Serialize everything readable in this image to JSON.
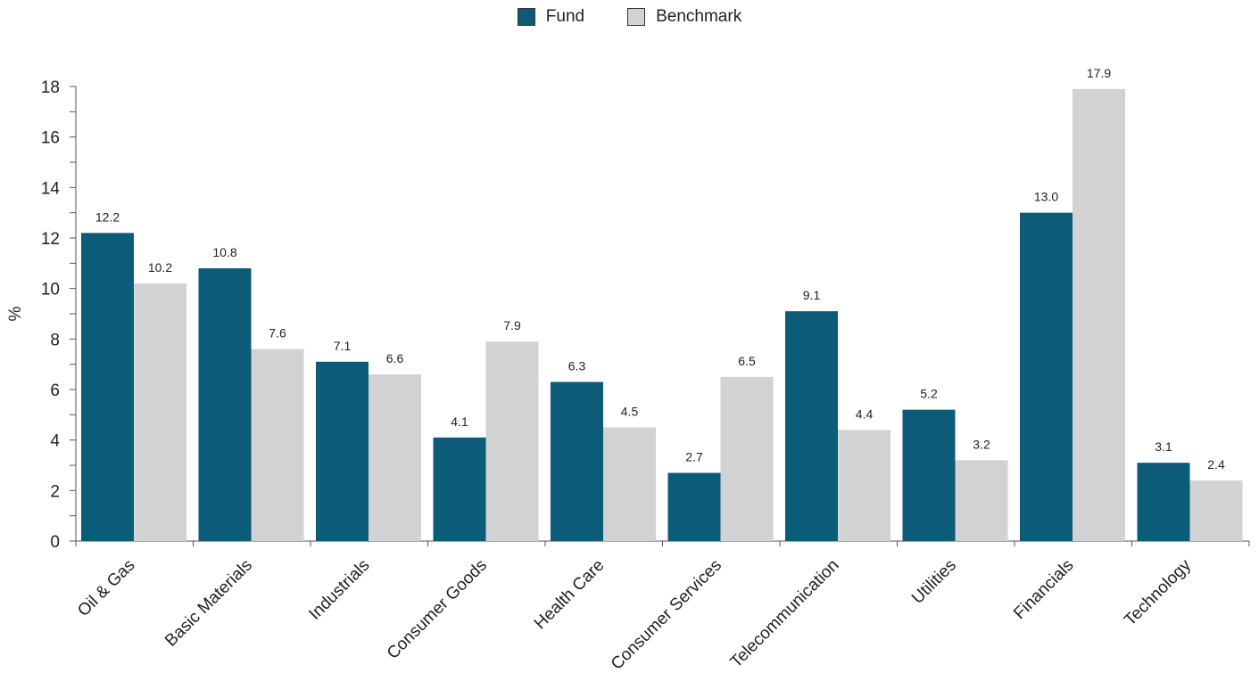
{
  "chart_data": {
    "type": "bar",
    "categories": [
      "Oil & Gas",
      "Basic Materials",
      "Industrials",
      "Consumer Goods",
      "Health Care",
      "Consumer Services",
      "Telecommunication",
      "Utilities",
      "Financials",
      "Technology"
    ],
    "series": [
      {
        "name": "Fund",
        "color": "#0b5b79",
        "values": [
          12.2,
          10.8,
          7.1,
          4.1,
          6.3,
          2.7,
          9.1,
          5.2,
          13.0,
          3.1
        ]
      },
      {
        "name": "Benchmark",
        "color": "#d1d2d4",
        "values": [
          10.2,
          7.6,
          6.6,
          7.9,
          4.5,
          6.5,
          4.4,
          3.2,
          17.9,
          2.4
        ]
      }
    ],
    "ylabel": "%",
    "ylim": [
      0,
      18
    ],
    "yticks": [
      0,
      2,
      4,
      6,
      8,
      10,
      12,
      14,
      16,
      18
    ],
    "legend_position": "top-center",
    "grid": false
  }
}
